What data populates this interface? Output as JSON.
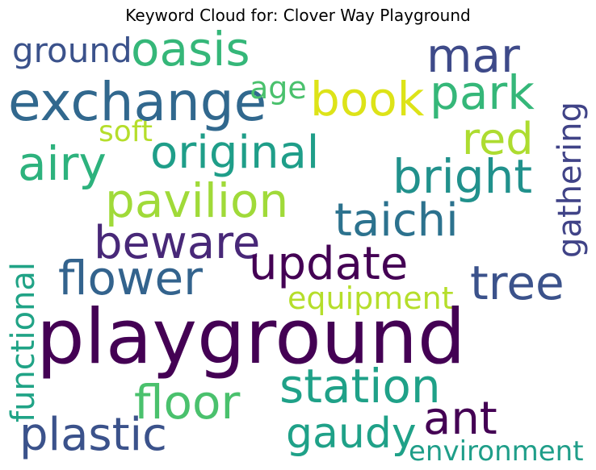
{
  "title": "Keyword Cloud for: Clover Way Playground",
  "words": [
    {
      "text": "ground",
      "color": "#3b528b"
    },
    {
      "text": "oasis",
      "color": "#35b779"
    },
    {
      "text": "mar",
      "color": "#3e4a89"
    },
    {
      "text": "exchange",
      "color": "#31688e"
    },
    {
      "text": "age",
      "color": "#4ac16d"
    },
    {
      "text": "book",
      "color": "#dde318"
    },
    {
      "text": "park",
      "color": "#35b779"
    },
    {
      "text": "gathering",
      "color": "#404387"
    },
    {
      "text": "soft",
      "color": "#b5de2b"
    },
    {
      "text": "red",
      "color": "#addc30"
    },
    {
      "text": "airy",
      "color": "#2db27d"
    },
    {
      "text": "original",
      "color": "#1f9e89"
    },
    {
      "text": "bright",
      "color": "#21918c"
    },
    {
      "text": "pavilion",
      "color": "#a0da39"
    },
    {
      "text": "taichi",
      "color": "#2c728e"
    },
    {
      "text": "beware",
      "color": "#482878"
    },
    {
      "text": "functional",
      "color": "#20a386"
    },
    {
      "text": "update",
      "color": "#440154"
    },
    {
      "text": "flower",
      "color": "#33638d"
    },
    {
      "text": "tree",
      "color": "#3b528b"
    },
    {
      "text": "equipment",
      "color": "#b5de2b"
    },
    {
      "text": "playground",
      "color": "#440154"
    },
    {
      "text": "station",
      "color": "#1fa188"
    },
    {
      "text": "floor",
      "color": "#4ac16d"
    },
    {
      "text": "ant",
      "color": "#440154"
    },
    {
      "text": "plastic",
      "color": "#3b528b"
    },
    {
      "text": "gaudy",
      "color": "#1fa188"
    },
    {
      "text": "environment",
      "color": "#1f9e89"
    }
  ]
}
